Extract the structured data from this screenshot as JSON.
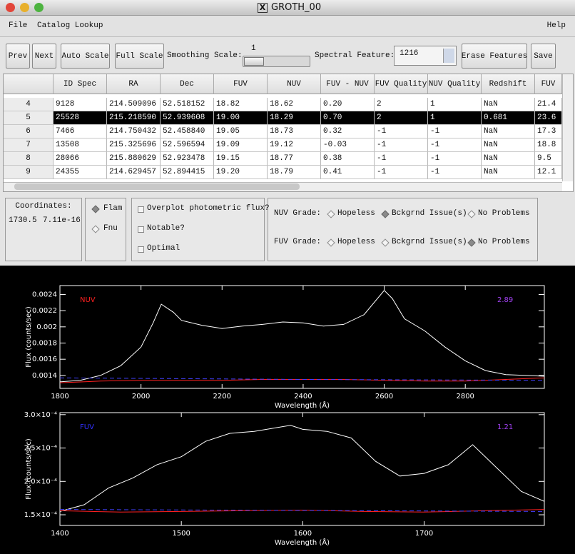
{
  "window_title": "GROTH_00",
  "menu": {
    "left": [
      "File",
      "Catalog Lookup"
    ],
    "right": "Help"
  },
  "toolbar": {
    "buttons": [
      "Prev",
      "Next",
      "Auto Scale",
      "Full Scale"
    ],
    "smoothing_label": "Smoothing Scale:",
    "smoothing_value": "1",
    "feature_label": "Spectral Feature:",
    "feature_value": "1216",
    "buttons_right": [
      "Erase Features",
      "Save"
    ]
  },
  "table": {
    "columns": [
      "ID Spec",
      "RA",
      "Dec",
      "FUV",
      "NUV",
      "FUV - NUV",
      "FUV Quality",
      "NUV Quality",
      "Redshift",
      "FUV"
    ],
    "row_labels": [
      "4",
      "5",
      "6",
      "7",
      "8",
      "9"
    ],
    "rows": [
      [
        "9128",
        "214.509096",
        "52.518152",
        "18.82",
        "18.62",
        "0.20",
        "2",
        "1",
        "NaN",
        "21.4"
      ],
      [
        "25528",
        "215.218590",
        "52.939608",
        "19.00",
        "18.29",
        "0.70",
        "2",
        "1",
        "0.681",
        "23.6"
      ],
      [
        "7466",
        "214.750432",
        "52.458840",
        "19.05",
        "18.73",
        "0.32",
        "-1",
        "-1",
        "NaN",
        "17.3"
      ],
      [
        "13508",
        "215.325696",
        "52.596594",
        "19.09",
        "19.12",
        "-0.03",
        "-1",
        "-1",
        "NaN",
        "18.8"
      ],
      [
        "28066",
        "215.880629",
        "52.923478",
        "19.15",
        "18.77",
        "0.38",
        "-1",
        "-1",
        "NaN",
        "9.5"
      ],
      [
        "24355",
        "214.629457",
        "52.894415",
        "19.20",
        "18.79",
        "0.41",
        "-1",
        "-1",
        "NaN",
        "12.1"
      ]
    ],
    "selected_row": 1
  },
  "coordinates": {
    "label": "Coordinates:",
    "x": "1730.5",
    "y": "7.11e-16"
  },
  "units": {
    "options": [
      "Flam",
      "Fnu"
    ],
    "selected": 0
  },
  "flags": [
    "Overplot photometric flux?",
    "Notable?",
    "Optimal"
  ],
  "grades": {
    "rows": [
      {
        "label": "NUV Grade:",
        "selected": 1
      },
      {
        "label": "FUV Grade:",
        "selected": 2
      }
    ],
    "options": [
      "Hopeless",
      "Bckgrnd Issue(s)",
      "No Problems"
    ]
  },
  "chart_data": [
    {
      "type": "line",
      "xlabel": "Wavelength (Å)",
      "ylabel": "Flux (counts/sec)",
      "annotations": [
        {
          "text": "NUV",
          "color": "#ff2020"
        },
        {
          "text": "2.89",
          "color": "#a040f0"
        }
      ],
      "xlim": [
        1800,
        2995
      ],
      "ylim": [
        0.00124,
        0.00251
      ],
      "xticks": [
        1800,
        2000,
        2200,
        2400,
        2600,
        2800
      ],
      "yticks": [
        0.0014,
        0.0016,
        0.0018,
        0.002,
        0.0022,
        0.0024
      ],
      "series": [
        {
          "color": "#ffffff",
          "dash": false,
          "x": [
            1800,
            1850,
            1900,
            1950,
            2000,
            2030,
            2050,
            2080,
            2100,
            2150,
            2200,
            2250,
            2300,
            2350,
            2400,
            2450,
            2500,
            2550,
            2600,
            2620,
            2650,
            2700,
            2750,
            2800,
            2850,
            2900,
            2950,
            2995
          ],
          "values": [
            0.00132,
            0.00134,
            0.0014,
            0.00152,
            0.00175,
            0.00205,
            0.00228,
            0.00218,
            0.00208,
            0.00202,
            0.00198,
            0.00201,
            0.00203,
            0.00206,
            0.00205,
            0.00201,
            0.00203,
            0.00215,
            0.00245,
            0.00235,
            0.0021,
            0.00195,
            0.00175,
            0.00158,
            0.00146,
            0.00141,
            0.0014,
            0.00139
          ]
        },
        {
          "color": "#ff2020",
          "dash": false,
          "x": [
            1800,
            1900,
            2000,
            2100,
            2200,
            2300,
            2400,
            2500,
            2600,
            2700,
            2800,
            2900,
            2995
          ],
          "values": [
            0.00131,
            0.00133,
            0.00134,
            0.00134,
            0.00134,
            0.00135,
            0.00135,
            0.00135,
            0.00134,
            0.00133,
            0.00133,
            0.00135,
            0.00137
          ]
        },
        {
          "color": "#4040ff",
          "dash": true,
          "x": [
            1800,
            2400,
            2995
          ],
          "values": [
            0.00137,
            0.00135,
            0.00134
          ]
        }
      ]
    },
    {
      "type": "line",
      "xlabel": "Wavelength (Å)",
      "ylabel": "Flux (counts/sec)",
      "annotations": [
        {
          "text": "FUV",
          "color": "#3030ff"
        },
        {
          "text": "1.21",
          "color": "#a040f0"
        }
      ],
      "xlim": [
        1400,
        1799
      ],
      "ylim": [
        0.000134,
        0.000303
      ],
      "xticks": [
        1400,
        1500,
        1600,
        1700
      ],
      "yticks": [
        {
          "value": 0.00015,
          "label": "1.5×10⁻⁴"
        },
        {
          "value": 0.0002,
          "label": "2.0×10⁻⁴"
        },
        {
          "value": 0.00025,
          "label": "2.5×10⁻⁴"
        },
        {
          "value": 0.0003,
          "label": "3.0×10⁻⁴"
        }
      ],
      "series": [
        {
          "color": "#ffffff",
          "dash": false,
          "x": [
            1400,
            1420,
            1440,
            1460,
            1480,
            1500,
            1520,
            1540,
            1560,
            1590,
            1600,
            1620,
            1640,
            1660,
            1680,
            1700,
            1720,
            1740,
            1760,
            1780,
            1799
          ],
          "values": [
            0.000155,
            0.000165,
            0.00019,
            0.000205,
            0.000225,
            0.000237,
            0.00026,
            0.000272,
            0.000275,
            0.000284,
            0.000278,
            0.000275,
            0.000265,
            0.00023,
            0.000208,
            0.000212,
            0.000225,
            0.000255,
            0.00022,
            0.000185,
            0.00017
          ]
        },
        {
          "color": "#ff2020",
          "dash": false,
          "x": [
            1400,
            1450,
            1500,
            1550,
            1600,
            1650,
            1700,
            1750,
            1799
          ],
          "values": [
            0.000156,
            0.000154,
            0.000155,
            0.000156,
            0.000157,
            0.000155,
            0.000154,
            0.000156,
            0.000158
          ]
        },
        {
          "color": "#4040ff",
          "dash": true,
          "x": [
            1400,
            1799
          ],
          "values": [
            0.000158,
            0.000155
          ]
        }
      ]
    }
  ]
}
